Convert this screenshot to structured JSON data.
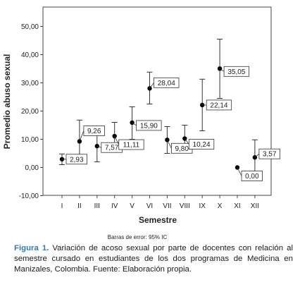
{
  "chart_data": {
    "type": "scatter",
    "subtype": "error-bar",
    "xlabel": "Semestre",
    "ylabel": "Promedio abuso sexual",
    "categories": [
      "I",
      "II",
      "III",
      "IV",
      "V",
      "VI",
      "VII",
      "VIII",
      "IX",
      "X",
      "XI",
      "XII"
    ],
    "means": [
      2.93,
      9.26,
      7.57,
      11.11,
      15.9,
      28.04,
      9.8,
      10.24,
      22.14,
      35.05,
      0.0,
      3.57
    ],
    "data_labels": [
      "2,93",
      "9,26",
      "7,57",
      "11,11",
      "15,90",
      "28,04",
      "9,80",
      "10,24",
      "22,14",
      "35,05",
      "0,00",
      "3,57"
    ],
    "ci_lower": [
      1.0,
      1.5,
      2.0,
      6.0,
      10.0,
      22.5,
      5.0,
      5.5,
      13.0,
      24.5,
      0.0,
      -2.5
    ],
    "ci_upper": [
      4.8,
      16.8,
      13.0,
      16.0,
      21.5,
      33.8,
      14.5,
      15.0,
      31.3,
      45.5,
      0.0,
      9.8
    ],
    "ylim": [
      -10,
      55
    ],
    "yticks": [
      -10,
      0,
      10,
      20,
      30,
      40,
      50
    ],
    "ytick_labels": [
      "-10,00",
      "0,00",
      "10,00",
      "20,00",
      "30,00",
      "40,00",
      "50,00"
    ],
    "grid": false,
    "note": "Barras de error: 95% IC"
  },
  "caption": {
    "lead": "Figura 1.",
    "text": "Variación de acoso sexual por parte de docentes con relación al semestre cursado en estudiantes de los dos programas de Medicina en Manizales, Colombia. Fuente: Elaboración propia."
  }
}
